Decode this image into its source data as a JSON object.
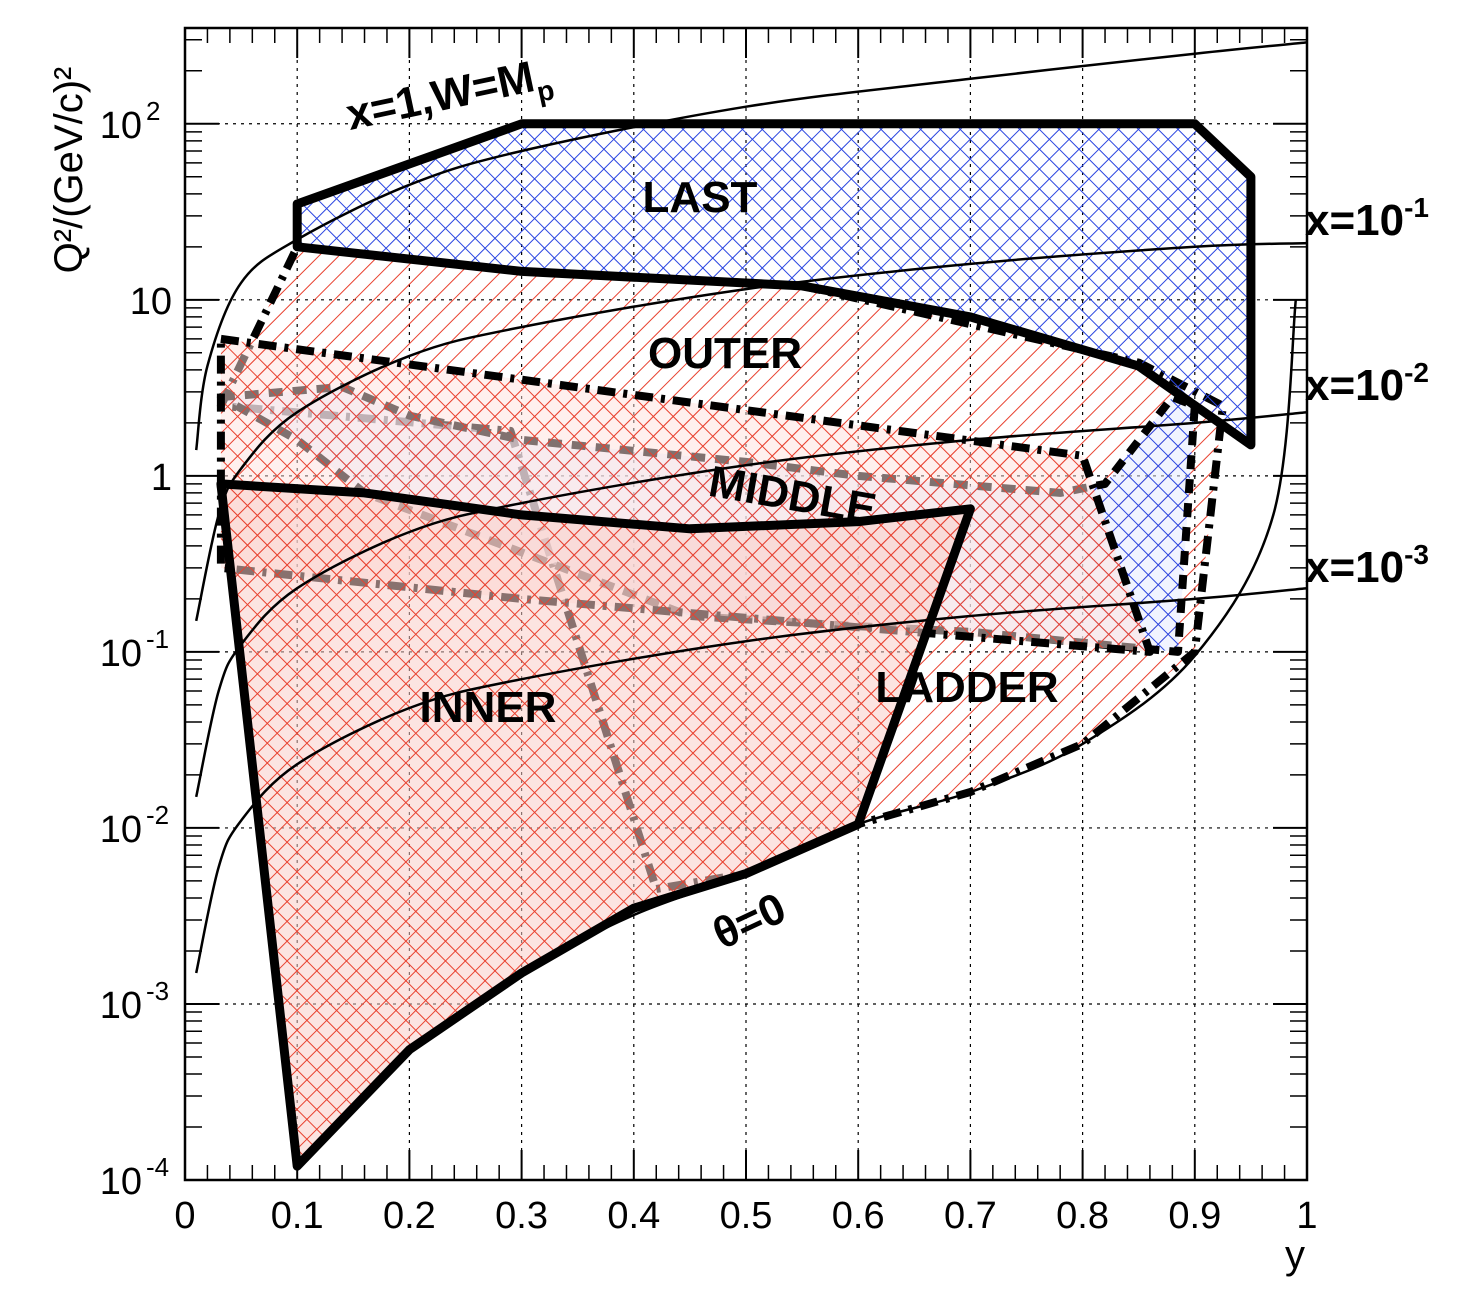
{
  "chart_data": {
    "type": "area",
    "xlabel": "y",
    "ylabel": "Q²/(GeV/c)²",
    "xlim": [
      0,
      1
    ],
    "ylim": [
      0.0001,
      350
    ],
    "yscale": "log",
    "grid": true,
    "x_ticks": [
      "0",
      "0.1",
      "0.2",
      "0.3",
      "0.4",
      "0.5",
      "0.6",
      "0.7",
      "0.8",
      "0.9",
      "1"
    ],
    "y_ticks": [
      {
        "base": "10",
        "exp": "-4"
      },
      {
        "base": "10",
        "exp": "-3"
      },
      {
        "base": "10",
        "exp": "-2"
      },
      {
        "base": "10",
        "exp": "-1"
      },
      {
        "base": "1",
        "exp": ""
      },
      {
        "base": "10",
        "exp": ""
      },
      {
        "base": "10",
        "exp": "2"
      }
    ],
    "curves": [
      {
        "label": {
          "text": "x=1,W=M",
          "sub": "p"
        },
        "x_value": 1,
        "points": [
          [
            0.01,
            1.4
          ],
          [
            0.02,
            4.2
          ],
          [
            0.05,
            12.5
          ],
          [
            0.1,
            22
          ],
          [
            0.2,
            45
          ],
          [
            0.3,
            70
          ],
          [
            0.5,
            125
          ],
          [
            0.7,
            180
          ],
          [
            0.9,
            250
          ],
          [
            1.0,
            290
          ]
        ]
      },
      {
        "label": {
          "text": "x=10",
          "sup": "-1"
        },
        "x_value": 0.1,
        "points": [
          [
            0.01,
            0.15
          ],
          [
            0.03,
            0.6
          ],
          [
            0.05,
            1.1
          ],
          [
            0.1,
            2.3
          ],
          [
            0.2,
            4.8
          ],
          [
            0.3,
            7
          ],
          [
            0.5,
            11.5
          ],
          [
            0.7,
            16
          ],
          [
            0.9,
            20
          ],
          [
            1.0,
            21
          ]
        ]
      },
      {
        "label": {
          "text": "x=10",
          "sup": "-2"
        },
        "x_value": 0.01,
        "points": [
          [
            0.01,
            0.015
          ],
          [
            0.03,
            0.06
          ],
          [
            0.05,
            0.11
          ],
          [
            0.1,
            0.23
          ],
          [
            0.2,
            0.48
          ],
          [
            0.3,
            0.7
          ],
          [
            0.5,
            1.15
          ],
          [
            0.7,
            1.6
          ],
          [
            0.9,
            2.0
          ],
          [
            1.0,
            2.3
          ]
        ]
      },
      {
        "label": {
          "text": "x=10",
          "sup": "-3"
        },
        "x_value": 0.001,
        "points": [
          [
            0.01,
            0.0015
          ],
          [
            0.03,
            0.006
          ],
          [
            0.05,
            0.011
          ],
          [
            0.1,
            0.023
          ],
          [
            0.2,
            0.048
          ],
          [
            0.3,
            0.07
          ],
          [
            0.5,
            0.115
          ],
          [
            0.7,
            0.16
          ],
          [
            0.9,
            0.2
          ],
          [
            1.0,
            0.23
          ]
        ]
      },
      {
        "label": {
          "text": "θ=0"
        },
        "x_value": null,
        "points": [
          [
            0.1,
            0.00012
          ],
          [
            0.2,
            0.00055
          ],
          [
            0.3,
            0.0015
          ],
          [
            0.4,
            0.0032
          ],
          [
            0.5,
            0.0055
          ],
          [
            0.6,
            0.0105
          ],
          [
            0.7,
            0.016
          ],
          [
            0.8,
            0.03
          ],
          [
            0.9,
            0.095
          ],
          [
            0.97,
            0.6
          ],
          [
            0.99,
            10
          ]
        ]
      }
    ],
    "regions": [
      {
        "name": "OUTER",
        "color": "#e8412f",
        "hatch": "diagonal",
        "outline": "dash-dot",
        "points": [
          [
            0.032,
            2.5
          ],
          [
            0.1,
            20
          ],
          [
            0.3,
            14.5
          ],
          [
            0.55,
            12
          ],
          [
            0.85,
            4.4
          ],
          [
            0.925,
            2.5
          ],
          [
            0.9,
            0.1
          ],
          [
            0.8,
            0.03
          ],
          [
            0.7,
            0.016
          ],
          [
            0.6,
            0.0105
          ],
          [
            0.5,
            0.0055
          ],
          [
            0.42,
            0.0045
          ],
          [
            0.29,
            1.8
          ]
        ]
      },
      {
        "name": "MIDDLE",
        "color": "#2a45e0",
        "hatch": "cross",
        "outline": "dash",
        "points": [
          [
            0.032,
            2.8
          ],
          [
            0.14,
            3.2
          ],
          [
            0.2,
            2.2
          ],
          [
            0.3,
            1.6
          ],
          [
            0.5,
            1.2
          ],
          [
            0.6,
            1.0
          ],
          [
            0.78,
            0.8
          ],
          [
            0.82,
            0.9
          ],
          [
            0.88,
            2.8
          ],
          [
            0.9,
            2.5
          ],
          [
            0.885,
            0.1
          ],
          [
            0.7,
            0.13
          ],
          [
            0.6,
            0.14
          ],
          [
            0.45,
            0.16
          ],
          [
            0.16,
            0.8
          ],
          [
            0.1,
            1.6
          ]
        ]
      },
      {
        "name": "LADDER",
        "color": "#e8412f",
        "hatch": "cross",
        "outline": "dash-dot",
        "points": [
          [
            0.032,
            6
          ],
          [
            0.8,
            1.3
          ],
          [
            0.86,
            0.1
          ],
          [
            0.3,
            0.2
          ],
          [
            0.032,
            0.3
          ]
        ]
      },
      {
        "name": "INNER",
        "color": "#e8412f",
        "hatch": "cross",
        "outline": "solid",
        "points": [
          [
            0.032,
            0.9
          ],
          [
            0.16,
            0.8
          ],
          [
            0.3,
            0.6
          ],
          [
            0.45,
            0.5
          ],
          [
            0.6,
            0.55
          ],
          [
            0.7,
            0.65
          ],
          [
            0.6,
            0.0105
          ],
          [
            0.5,
            0.0055
          ],
          [
            0.4,
            0.0035
          ],
          [
            0.3,
            0.0015
          ],
          [
            0.2,
            0.00055
          ],
          [
            0.1,
            0.00012
          ]
        ]
      },
      {
        "name": "LAST",
        "color": "#2a45e0",
        "hatch": "cross",
        "outline": "solid",
        "points": [
          [
            0.1,
            35
          ],
          [
            0.3,
            100
          ],
          [
            0.9,
            100
          ],
          [
            0.95,
            50
          ],
          [
            0.95,
            1.5
          ],
          [
            0.85,
            4.2
          ],
          [
            0.7,
            8
          ],
          [
            0.55,
            12
          ],
          [
            0.3,
            14.5
          ],
          [
            0.1,
            20
          ]
        ]
      }
    ]
  }
}
